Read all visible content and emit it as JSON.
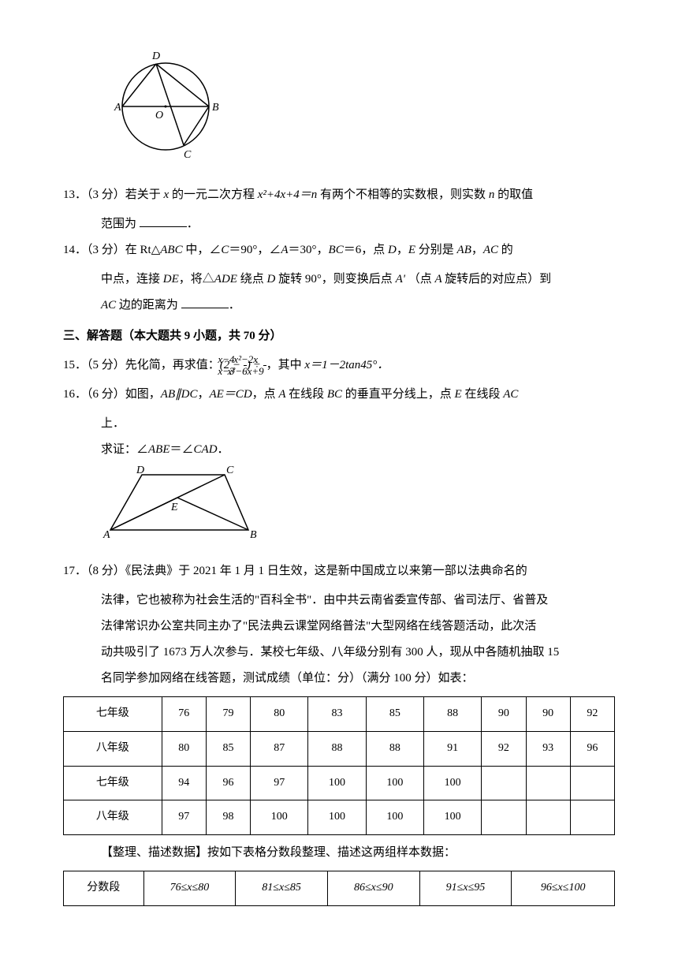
{
  "figure1": {
    "labels": {
      "A": "A",
      "B": "B",
      "C": "C",
      "D": "D",
      "O": "O"
    }
  },
  "q13": {
    "num": "13．",
    "points": "（3 分）",
    "text1": "若关于 ",
    "var_x": "x ",
    "text2": "的一元二次方程 ",
    "eq": "x²+4x+4＝n ",
    "text3": "有两个不相等的实数根，则实数 ",
    "var_n": "n ",
    "text4": "的取值",
    "line2": "范围为 ",
    "period": "．"
  },
  "q14": {
    "num": "14．",
    "points": "（3 分）",
    "text1": "在 Rt△",
    "abc": "ABC ",
    "text2": "中，∠",
    "c": "C",
    "text3": "＝90°，∠",
    "a": "A",
    "text4": "＝30°，",
    "bc": "BC",
    "text5": "＝6，点 ",
    "d": "D",
    "text6": "，",
    "e": "E ",
    "text7": "分别是 ",
    "ab": "AB",
    "text8": "，",
    "ac": "AC ",
    "text9": "的",
    "line2a": "中点，连接 ",
    "de": "DE",
    "line2b": "，将△",
    "ade": "ADE ",
    "line2c": "绕点 ",
    "d2": "D ",
    "line2d": "旋转 90°，则变换后点 ",
    "ap": "A' ",
    "line2e": "（点 ",
    "a2": "A ",
    "line2f": "旋转后的对应点）到",
    "line3a": "AC ",
    "line3b": "边的距离为 ",
    "period": "．"
  },
  "section3": "三、解答题（本大题共 9 小题，共 70 分）",
  "q15": {
    "num": "15．",
    "points": "（5 分）",
    "text1": "先化简，再求值：",
    "lparen": "(2 − ",
    "frac1n": "x−4",
    "frac1d": "x−3",
    "rparen": ") ÷ ",
    "frac2n": "x²−2x",
    "frac2d": "x²−6x+9",
    "text2": "，其中 ",
    "xeq": "x＝1－2tan45°．"
  },
  "q16": {
    "num": "16．",
    "points": "（6 分）",
    "text1": "如图，",
    "abdc": "AB∥DC",
    "text2": "，",
    "aecd": "AE＝CD",
    "text3": "，点 ",
    "a": "A ",
    "text4": "在线段 ",
    "bc": "BC ",
    "text5": "的垂直平分线上，点 ",
    "e": "E ",
    "text6": "在线段 ",
    "ac": "AC",
    "line2": "上．",
    "line3a": "求证：∠",
    "abe": "ABE",
    "line3b": "＝∠",
    "cad": "CAD",
    "period": "．"
  },
  "figure2": {
    "labels": {
      "A": "A",
      "B": "B",
      "C": "C",
      "D": "D",
      "E": "E"
    }
  },
  "q17": {
    "num": "17．",
    "points": "（8 分）",
    "text1": "《民法典》于 2021 年 1 月 1 日生效，这是新中国成立以来第一部以法典命名的",
    "line2": "法律，它也被称为社会生活的\"百科全书\"．由中共云南省委宣传部、省司法厅、省普及",
    "line3": "法律常识办公室共同主办了\"民法典云课堂网络普法\"大型网络在线答题活动，此次活",
    "line4": "动共吸引了 1673 万人次参与．某校七年级、八年级分别有 300 人，现从中各随机抽取 15",
    "line5": "名同学参加网络在线答题，测试成绩（单位：分）（满分 100 分）如表："
  },
  "table1": {
    "rows": [
      [
        "七年级",
        "76",
        "79",
        "80",
        "83",
        "85",
        "88",
        "90",
        "90",
        "92"
      ],
      [
        "八年级",
        "80",
        "85",
        "87",
        "88",
        "88",
        "91",
        "92",
        "93",
        "96"
      ],
      [
        "七年级",
        "94",
        "96",
        "97",
        "100",
        "100",
        "100",
        "",
        "",
        ""
      ],
      [
        "八年级",
        "97",
        "98",
        "100",
        "100",
        "100",
        "100",
        "",
        "",
        ""
      ]
    ]
  },
  "q17_desc": "【整理、描述数据】按如下表格分数段整理、描述这两组样本数据：",
  "table2": {
    "rows": [
      [
        "分数段",
        "76≤x≤80",
        "81≤x≤85",
        "86≤x≤90",
        "91≤x≤95",
        "96≤x≤100"
      ]
    ]
  }
}
